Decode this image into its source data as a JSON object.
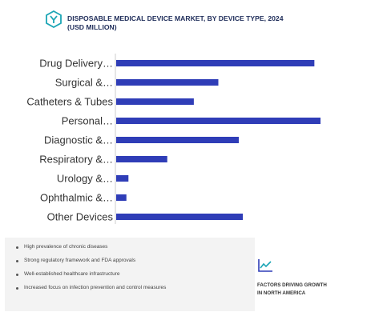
{
  "header": {
    "title": "DISPOSABLE MEDICAL DEVICE MARKET, BY DEVICE TYPE, 2024 (USD MILLION)"
  },
  "colors": {
    "bar": "#2f3db7",
    "accent": "#1ba5b5"
  },
  "chart_data": {
    "type": "bar",
    "orientation": "horizontal",
    "title": "DISPOSABLE MEDICAL DEVICE MARKET, BY DEVICE TYPE, 2024 (USD MILLION)",
    "categories": [
      "Drug Delivery…",
      "Surgical &…",
      "Catheters & Tubes",
      "Personal…",
      "Diagnostic &…",
      "Respiratory &…",
      "Urology &…",
      "Ophthalmic &…",
      "Other Devices"
    ],
    "values": [
      97,
      50,
      38,
      100,
      60,
      25,
      6,
      5,
      62
    ],
    "xlim": [
      0,
      100
    ],
    "grid": false,
    "legend": "none"
  },
  "factors": {
    "items": [
      "High prevalence of chronic diseases",
      "Strong regulatory framework and FDA approvals",
      "Well-established healthcare infrastructure",
      "Increased focus on infection prevention and control measures"
    ],
    "caption": "FACTORS DRIVING GROWTH IN NORTH AMERICA",
    "icon": "trend-chart-icon"
  }
}
